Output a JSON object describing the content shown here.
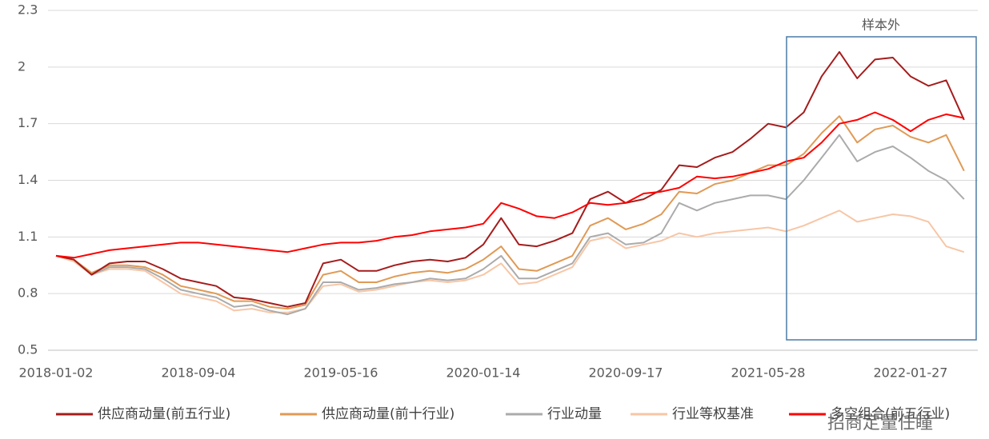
{
  "chart_data": {
    "type": "line",
    "annotation": "样本外",
    "watermark": "招商定量任瞳",
    "categories": [
      "2018-01-02",
      null,
      null,
      null,
      null,
      null,
      null,
      null,
      "2018-09-04",
      null,
      null,
      null,
      null,
      null,
      null,
      null,
      "2019-05-16",
      null,
      null,
      null,
      null,
      null,
      null,
      null,
      "2020-01-14",
      null,
      null,
      null,
      null,
      null,
      null,
      null,
      "2020-09-17",
      null,
      null,
      null,
      null,
      null,
      null,
      null,
      "2021-05-28",
      null,
      null,
      null,
      null,
      null,
      null,
      null,
      "2022-01-27",
      null,
      null,
      null
    ],
    "ylim": [
      0.5,
      2.3
    ],
    "yticks": [
      0.5,
      0.8,
      1.1,
      1.4,
      1.7,
      2,
      2.3
    ],
    "grid": true,
    "series": [
      {
        "name": "供应商动量(前五行业)",
        "color": "#a51c1c",
        "values": [
          1.0,
          0.98,
          0.9,
          0.96,
          0.97,
          0.97,
          0.93,
          0.88,
          0.86,
          0.84,
          0.78,
          0.77,
          0.75,
          0.73,
          0.75,
          0.96,
          0.98,
          0.92,
          0.92,
          0.95,
          0.97,
          0.98,
          0.97,
          0.99,
          1.06,
          1.2,
          1.06,
          1.05,
          1.08,
          1.12,
          1.3,
          1.34,
          1.28,
          1.3,
          1.35,
          1.48,
          1.47,
          1.52,
          1.55,
          1.62,
          1.7,
          1.68,
          1.76,
          1.95,
          2.08,
          1.94,
          2.04,
          2.05,
          1.95,
          1.9,
          1.93,
          1.72
        ]
      },
      {
        "name": "供应商动量(前十行业)",
        "color": "#e09a55",
        "values": [
          1.0,
          0.98,
          0.91,
          0.95,
          0.95,
          0.94,
          0.9,
          0.84,
          0.82,
          0.8,
          0.76,
          0.76,
          0.73,
          0.72,
          0.74,
          0.9,
          0.92,
          0.86,
          0.86,
          0.89,
          0.91,
          0.92,
          0.91,
          0.93,
          0.98,
          1.05,
          0.93,
          0.92,
          0.96,
          1.0,
          1.16,
          1.2,
          1.14,
          1.17,
          1.22,
          1.34,
          1.33,
          1.38,
          1.4,
          1.44,
          1.48,
          1.48,
          1.54,
          1.65,
          1.74,
          1.6,
          1.67,
          1.69,
          1.63,
          1.6,
          1.64,
          1.45
        ]
      },
      {
        "name": "行业动量",
        "color": "#ababab",
        "values": [
          1.0,
          0.98,
          0.9,
          0.94,
          0.94,
          0.93,
          0.88,
          0.82,
          0.8,
          0.78,
          0.73,
          0.74,
          0.71,
          0.69,
          0.72,
          0.86,
          0.86,
          0.82,
          0.83,
          0.85,
          0.86,
          0.88,
          0.87,
          0.88,
          0.93,
          1.0,
          0.88,
          0.88,
          0.92,
          0.96,
          1.1,
          1.12,
          1.06,
          1.07,
          1.12,
          1.28,
          1.24,
          1.28,
          1.3,
          1.32,
          1.32,
          1.3,
          1.4,
          1.52,
          1.64,
          1.5,
          1.55,
          1.58,
          1.52,
          1.45,
          1.4,
          1.3
        ]
      },
      {
        "name": "行业等权基准",
        "color": "#f7c6a6",
        "values": [
          1.0,
          0.97,
          0.9,
          0.93,
          0.93,
          0.92,
          0.86,
          0.8,
          0.78,
          0.76,
          0.71,
          0.72,
          0.7,
          0.7,
          0.72,
          0.84,
          0.85,
          0.81,
          0.82,
          0.84,
          0.86,
          0.87,
          0.86,
          0.87,
          0.9,
          0.96,
          0.85,
          0.86,
          0.9,
          0.94,
          1.08,
          1.1,
          1.04,
          1.06,
          1.08,
          1.12,
          1.1,
          1.12,
          1.13,
          1.14,
          1.15,
          1.13,
          1.16,
          1.2,
          1.24,
          1.18,
          1.2,
          1.22,
          1.21,
          1.18,
          1.05,
          1.02
        ]
      },
      {
        "name": "多空组合(前五行业)",
        "color": "#ff0000",
        "values": [
          1.0,
          0.99,
          1.01,
          1.03,
          1.04,
          1.05,
          1.06,
          1.07,
          1.07,
          1.06,
          1.05,
          1.04,
          1.03,
          1.02,
          1.04,
          1.06,
          1.07,
          1.07,
          1.08,
          1.1,
          1.11,
          1.13,
          1.14,
          1.15,
          1.17,
          1.28,
          1.25,
          1.21,
          1.2,
          1.23,
          1.28,
          1.27,
          1.28,
          1.33,
          1.34,
          1.36,
          1.42,
          1.41,
          1.42,
          1.44,
          1.46,
          1.5,
          1.52,
          1.6,
          1.7,
          1.72,
          1.76,
          1.72,
          1.66,
          1.72,
          1.75,
          1.73
        ]
      }
    ]
  }
}
